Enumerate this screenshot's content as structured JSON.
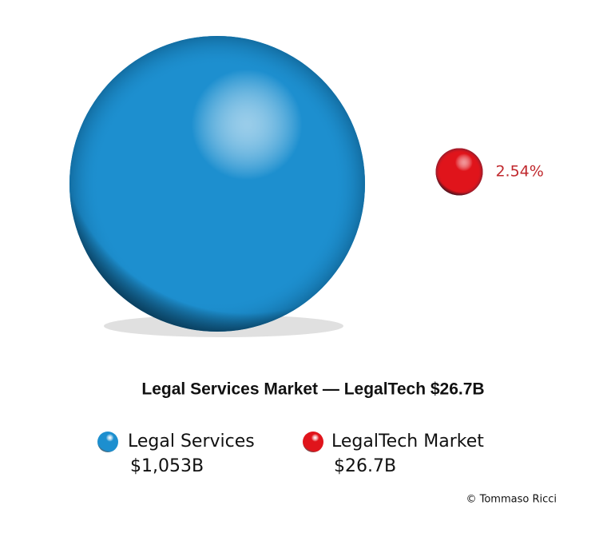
{
  "chart_data": {
    "type": "bubble",
    "title": "Legal Services Market — LegalTech $26.7B",
    "series": [
      {
        "name": "Legal Services",
        "color": "#1d8fcf",
        "values": [
          1053
        ],
        "value_labels": [
          "$1,053B"
        ]
      },
      {
        "name": "LegalTech Market",
        "color": "#e0141b",
        "values": [
          26.7
        ],
        "value_labels": [
          "$26.7B"
        ],
        "annotation": "2.54%"
      }
    ],
    "credit": "© Tommaso Ricci"
  }
}
